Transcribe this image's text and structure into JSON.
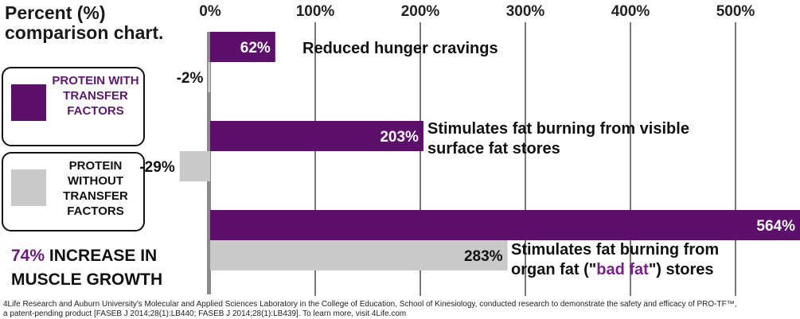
{
  "title": "Percent (%) comparison chart.",
  "legend": [
    {
      "label": "PROTEIN WITH TRANSFER FACTORS",
      "color": "#5c0f6b"
    },
    {
      "label": "PROTEIN WITHOUT TRANSFER FACTORS",
      "color": "#c9c9c9"
    }
  ],
  "highlight": {
    "pct": "74%",
    "text": "INCREASE IN MUSCLE GROWTH"
  },
  "footnote": {
    "line1": "4Life Research and Auburn University's Molecular and Applied Sciences Laboratory in the College of Education, School of Kinesiology, conducted research to demonstrate the safety and efficacy of PRO-TF™,",
    "line2": "a patent-pending product [FASEB J 2014;28(1):LB440; FASEB J 2014;28(1):LB439]. To learn more, visit 4Life.com"
  },
  "chart_data": {
    "type": "bar",
    "orientation": "horizontal",
    "ticks": [
      "0%",
      "100%",
      "200%",
      "300%",
      "400%",
      "500%"
    ],
    "tick_values": [
      0,
      100,
      200,
      300,
      400,
      500
    ],
    "xlim": [
      -30,
      560
    ],
    "grid": true,
    "categories": [
      {
        "label": [
          "Reduced hunger cravings"
        ]
      },
      {
        "label": [
          "Stimulates fat burning from visible",
          "surface fat stores"
        ]
      },
      {
        "label_parts": [
          [
            "Stimulates fat burning from"
          ],
          [
            "organ fat (\"",
            "bad fat",
            "\") stores"
          ]
        ]
      }
    ],
    "series": [
      {
        "name": "PROTEIN WITH TRANSFER FACTORS",
        "color": "#5c0f6b",
        "values": [
          62,
          203,
          564
        ],
        "labels": [
          "62%",
          "203%",
          "564%"
        ]
      },
      {
        "name": "PROTEIN WITHOUT TRANSFER FACTORS",
        "color": "#c9c9c9",
        "values": [
          -2,
          -29,
          283
        ],
        "labels": [
          "-2%",
          "-29%",
          "283%"
        ]
      }
    ],
    "accent_color": "#7a1f8c"
  }
}
